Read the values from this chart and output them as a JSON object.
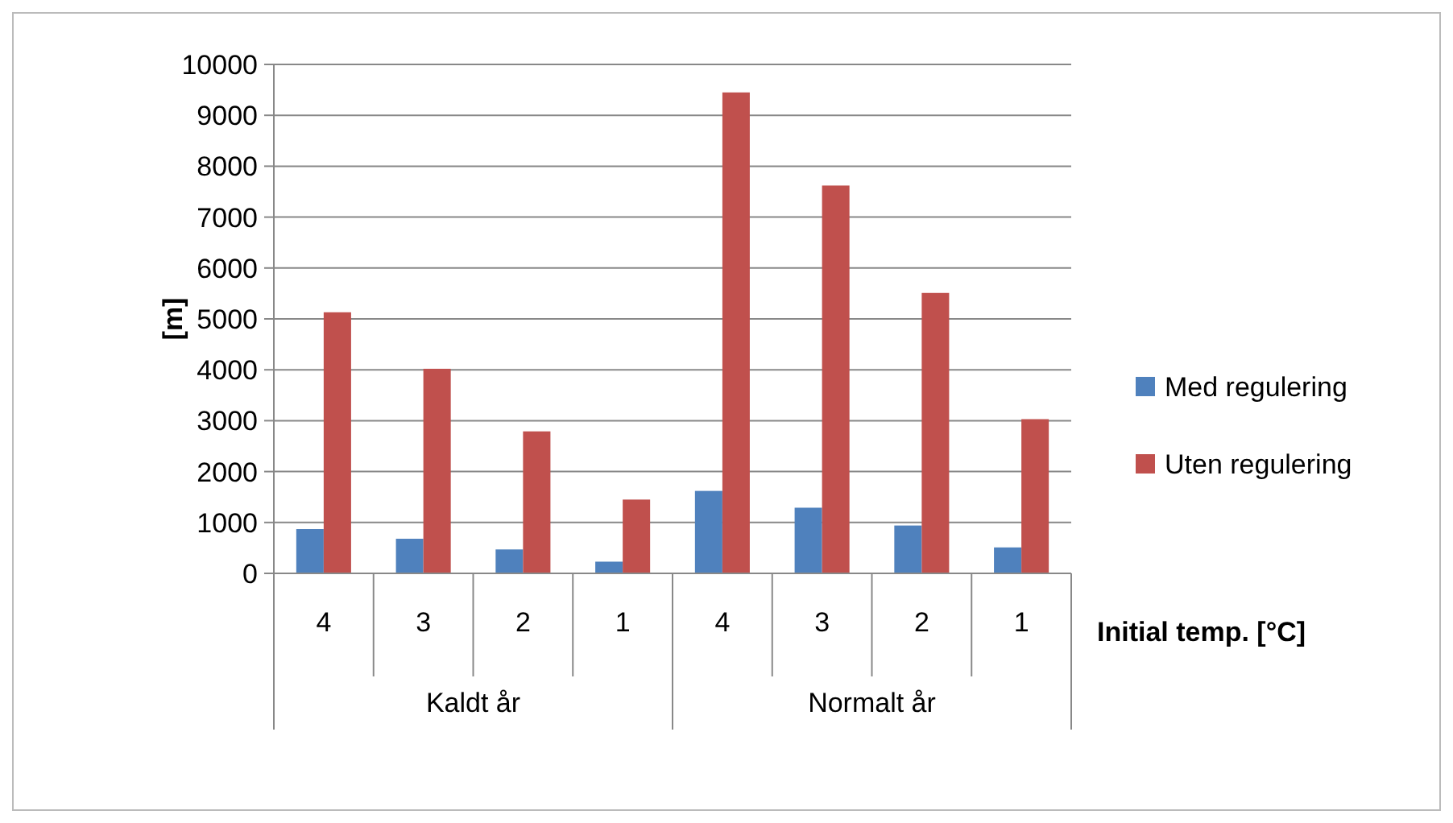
{
  "chart_data": {
    "type": "bar",
    "xlabel": "Initial temp. [°C]",
    "ylabel": "[m]",
    "categories": [
      "4",
      "3",
      "2",
      "1",
      "4",
      "3",
      "2",
      "1"
    ],
    "series": [
      {
        "name": "Med regulering",
        "color": "#4f81bd",
        "values": [
          870,
          680,
          470,
          230,
          1620,
          1290,
          940,
          510
        ]
      },
      {
        "name": "Uten regulering",
        "color": "#c0504d",
        "values": [
          5130,
          4020,
          2790,
          1450,
          9450,
          7620,
          5510,
          3030
        ]
      }
    ],
    "ylim": [
      0,
      10000
    ],
    "yticks": [
      0,
      1000,
      2000,
      3000,
      4000,
      5000,
      6000,
      7000,
      8000,
      9000,
      10000
    ],
    "grid": "y",
    "legend": "right",
    "annotations": [
      "Kaldt år",
      "Normalt år"
    ]
  }
}
